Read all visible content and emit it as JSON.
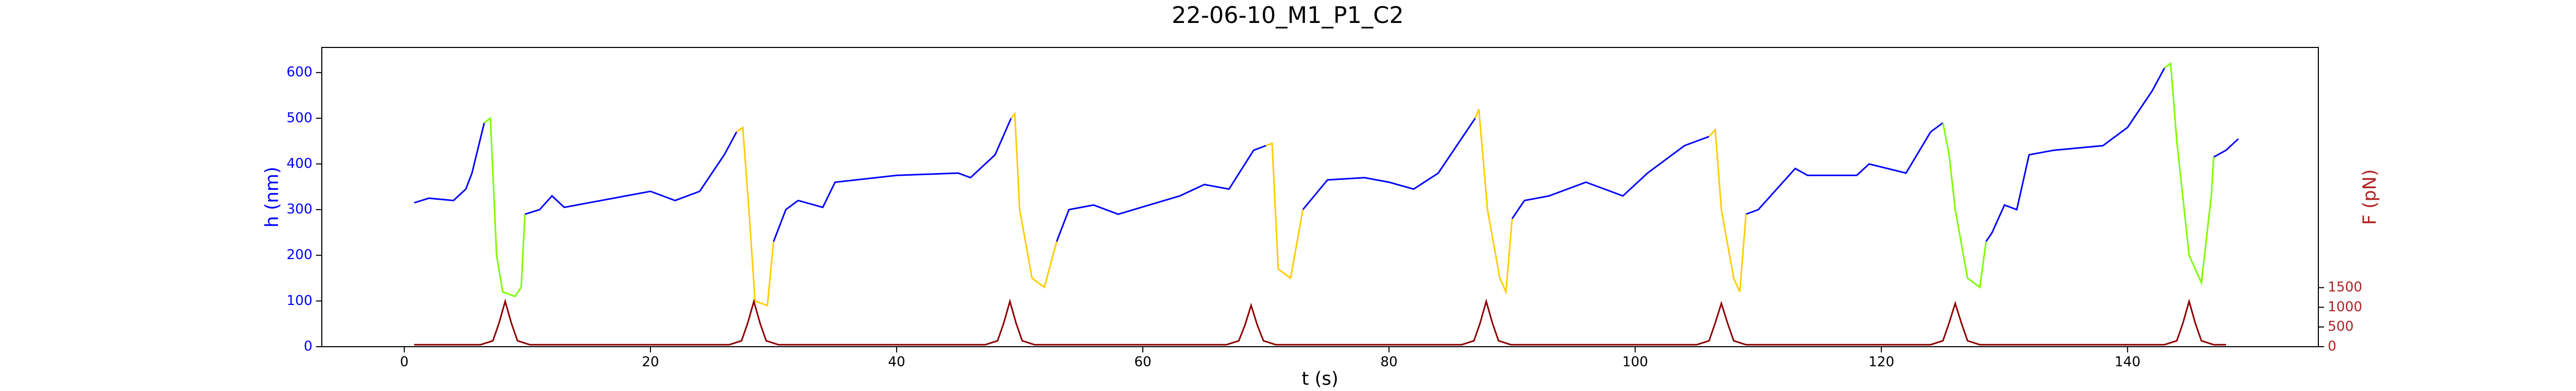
{
  "chart_data": {
    "type": "line",
    "title": "22-06-10_M1_P1_C2",
    "x_label": "t (s)",
    "y_label": "h (nm)",
    "y2_label": "F (pN)",
    "xlim": [
      -6.7,
      155.5
    ],
    "xticks": [
      0,
      20,
      40,
      60,
      80,
      100,
      120,
      140
    ],
    "ylim": [
      0,
      655
    ],
    "yticks": [
      0,
      100,
      200,
      300,
      400,
      500,
      600
    ],
    "y2lim": [
      0,
      7600
    ],
    "y2ticks": [
      0,
      500,
      1000,
      1500
    ],
    "y_color": "#0000ff",
    "y2_color": "#b22222",
    "series": [
      {
        "color": "#0000ff",
        "x": [
          0.8,
          2,
          4,
          5,
          5.5,
          6.5,
          null,
          9.8,
          11,
          12,
          13,
          20,
          22,
          24,
          26,
          27,
          null,
          30,
          31,
          32,
          34,
          35,
          40,
          45,
          46,
          48,
          49.3,
          null,
          53,
          54,
          56,
          58,
          63,
          65,
          67,
          69,
          70,
          null,
          73,
          75,
          78,
          80,
          82,
          84,
          86,
          87,
          null,
          90,
          91,
          93,
          96,
          99,
          101,
          104,
          106,
          null,
          109,
          110,
          111,
          113,
          114,
          118,
          119,
          122,
          124,
          125,
          null,
          128.5,
          129,
          130,
          131,
          132,
          134,
          138,
          140,
          142,
          143,
          null,
          147,
          148,
          149
        ],
        "values": [
          315,
          325,
          320,
          345,
          380,
          490,
          null,
          290,
          300,
          330,
          305,
          340,
          320,
          340,
          420,
          470,
          null,
          230,
          300,
          320,
          305,
          360,
          375,
          380,
          370,
          420,
          500,
          null,
          230,
          300,
          310,
          290,
          330,
          355,
          345,
          430,
          440,
          null,
          300,
          365,
          370,
          360,
          345,
          380,
          460,
          500,
          null,
          280,
          320,
          330,
          360,
          330,
          380,
          440,
          460,
          null,
          290,
          300,
          330,
          390,
          375,
          375,
          400,
          380,
          470,
          490,
          null,
          230,
          250,
          310,
          300,
          420,
          430,
          440,
          480,
          560,
          610,
          null,
          415,
          430,
          455
        ]
      },
      {
        "color": "#7cfc00",
        "x": [
          6.5,
          7,
          7.5,
          8,
          9,
          9.5,
          9.8,
          null,
          125,
          125.5,
          126,
          127,
          128,
          128.5,
          null,
          143,
          143.5,
          144,
          145,
          146,
          146.8,
          147
        ],
        "values": [
          490,
          500,
          200,
          120,
          110,
          130,
          290,
          null,
          490,
          420,
          300,
          150,
          130,
          230,
          null,
          610,
          620,
          450,
          200,
          140,
          330,
          415
        ]
      },
      {
        "color": "#ffcc00",
        "x": [
          27,
          27.5,
          28,
          28.5,
          29.5,
          30,
          null,
          49.3,
          49.6,
          50,
          51,
          52,
          53,
          null,
          70,
          70.5,
          71,
          72,
          73,
          null,
          87,
          87.3,
          88,
          89,
          89.5,
          90,
          null,
          106,
          106.5,
          107,
          108,
          108.5,
          109
        ],
        "values": [
          470,
          480,
          300,
          100,
          90,
          230,
          null,
          500,
          510,
          300,
          150,
          130,
          230,
          null,
          440,
          445,
          170,
          150,
          300,
          null,
          500,
          520,
          300,
          150,
          120,
          280,
          null,
          460,
          475,
          300,
          150,
          120,
          290
        ]
      },
      {
        "color": "#8b0000",
        "axis": "y2",
        "x": [
          0.8,
          6.2,
          7.2,
          7.7,
          8.2,
          8.7,
          9.2,
          10.2,
          26.4,
          27.4,
          27.9,
          28.4,
          28.9,
          29.4,
          30.4,
          47.2,
          48.2,
          48.7,
          49.2,
          49.7,
          50.2,
          51.2,
          66.8,
          67.8,
          68.3,
          68.8,
          69.3,
          69.8,
          70.8,
          85.9,
          86.9,
          87.4,
          87.9,
          88.4,
          88.9,
          89.9,
          105,
          106,
          106.5,
          107,
          107.5,
          108,
          109,
          124,
          125,
          125.5,
          126,
          126.5,
          127,
          128,
          143,
          144,
          144.5,
          145,
          145.5,
          146,
          147,
          148
        ],
        "values": [
          50,
          50,
          150,
          600,
          1150,
          600,
          150,
          50,
          50,
          150,
          600,
          1150,
          600,
          150,
          50,
          50,
          150,
          600,
          1150,
          600,
          150,
          50,
          50,
          150,
          550,
          1050,
          550,
          150,
          50,
          50,
          150,
          600,
          1150,
          600,
          150,
          50,
          50,
          150,
          600,
          1100,
          600,
          150,
          50,
          50,
          150,
          600,
          1100,
          600,
          150,
          50,
          50,
          150,
          600,
          1150,
          600,
          150,
          50,
          50
        ]
      }
    ]
  }
}
